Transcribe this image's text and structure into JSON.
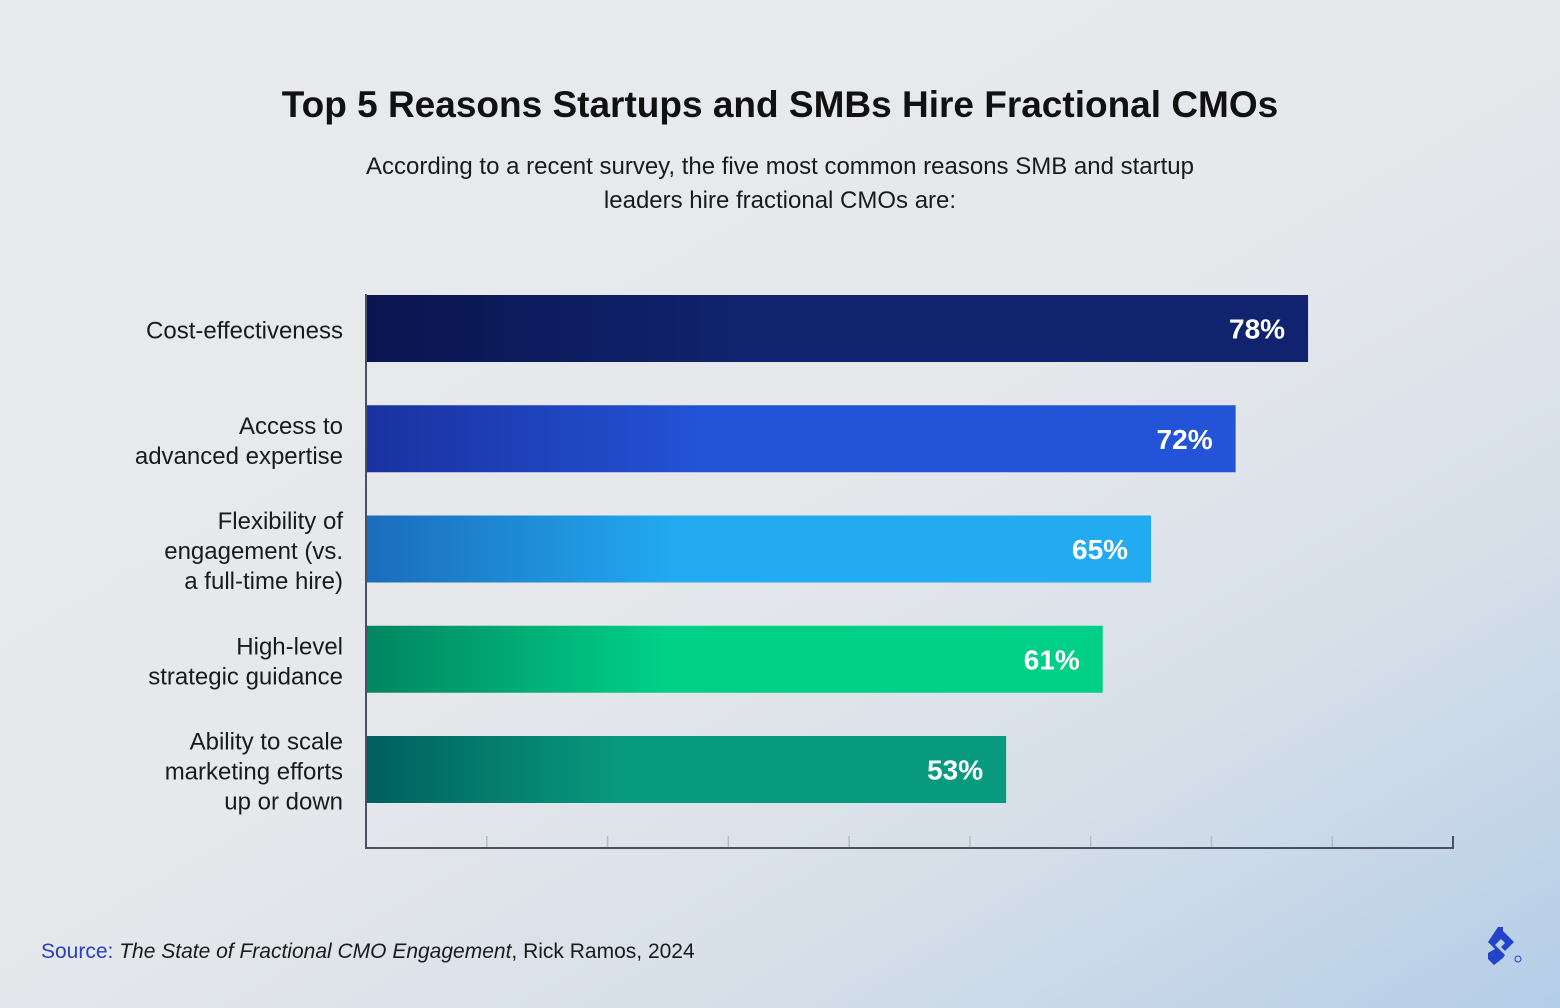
{
  "chart_data": {
    "type": "bar",
    "orientation": "horizontal",
    "title": "Top 5 Reasons Startups and SMBs Hire Fractional CMOs",
    "subtitle": "According to a recent survey, the five most common reasons SMB and startup leaders hire fractional CMOs are:",
    "categories": [
      [
        "Cost-effectiveness"
      ],
      [
        "Access to",
        "advanced expertise"
      ],
      [
        "Flexibility of",
        "engagement (vs.",
        "a full-time hire)"
      ],
      [
        "High-level",
        "strategic guidance"
      ],
      [
        "Ability to scale",
        "marketing efforts",
        "up or down"
      ]
    ],
    "values": [
      78,
      72,
      65,
      61,
      53
    ],
    "value_labels": [
      "78%",
      "72%",
      "65%",
      "61%",
      "53%"
    ],
    "bar_colors": [
      [
        "#0a1550",
        "#11236e"
      ],
      [
        "#1a31a0",
        "#2354d8"
      ],
      [
        "#1b6cbd",
        "#22abf0"
      ],
      [
        "#00855f",
        "#00cf88"
      ],
      [
        "#005f5e",
        "#089a7e"
      ]
    ],
    "xlim": [
      0,
      90
    ],
    "xtick_step": 10,
    "xtick_labels": false,
    "grid": false,
    "legend": "none"
  },
  "source": {
    "label": "Source:",
    "work": "The State of Fractional CMO Engagement",
    "rest": ", Rick Ramos, 2024"
  },
  "logo": "toptal-logo",
  "colors": {
    "accent": "#2a3fbf"
  }
}
